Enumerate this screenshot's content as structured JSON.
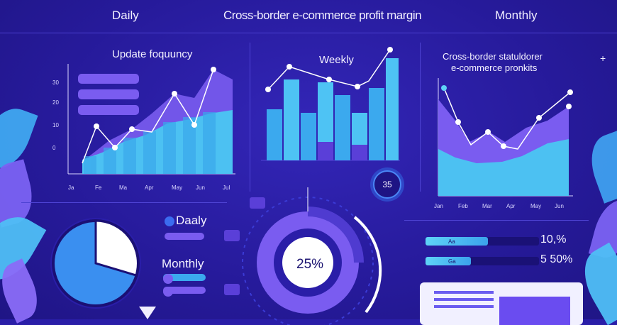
{
  "header": {
    "left_label": "Daily",
    "center_title": "Cross-border e-commerce profit margin",
    "right_label": "Monthly"
  },
  "panel_update": {
    "title": "Update foquuncy",
    "ytick_labels": [
      "30",
      "20",
      "10",
      "0",
      ""
    ],
    "xtick_labels": [
      "Ja",
      "Fe",
      "Ma",
      "Apr",
      "May",
      "Jun",
      "Jul"
    ]
  },
  "panel_weekly": {
    "title": "Weekly"
  },
  "panel_profits": {
    "title_line1": "Cross-border statuldorer",
    "title_line2": "e-commerce pronkits",
    "xtick_labels": [
      "Jan",
      "Feb",
      "Mar",
      "Apr",
      "May",
      "Jun"
    ]
  },
  "badge": {
    "value": "35"
  },
  "pie_legend": {
    "daily_label": "Daaly",
    "monthly_label": "Monthly"
  },
  "donut": {
    "center_label": "25%",
    "percent": 25
  },
  "progress": [
    {
      "label": "Aa",
      "value_text": "10,%",
      "fraction": 0.55
    },
    {
      "label": "Ga",
      "value_text": "5 50%",
      "fraction": 0.4
    }
  ],
  "colors": {
    "background": "#2a1ea8",
    "accent_cyan": "#45b9f0",
    "accent_purple": "#7a5cf0",
    "light": "#f1efff"
  }
}
